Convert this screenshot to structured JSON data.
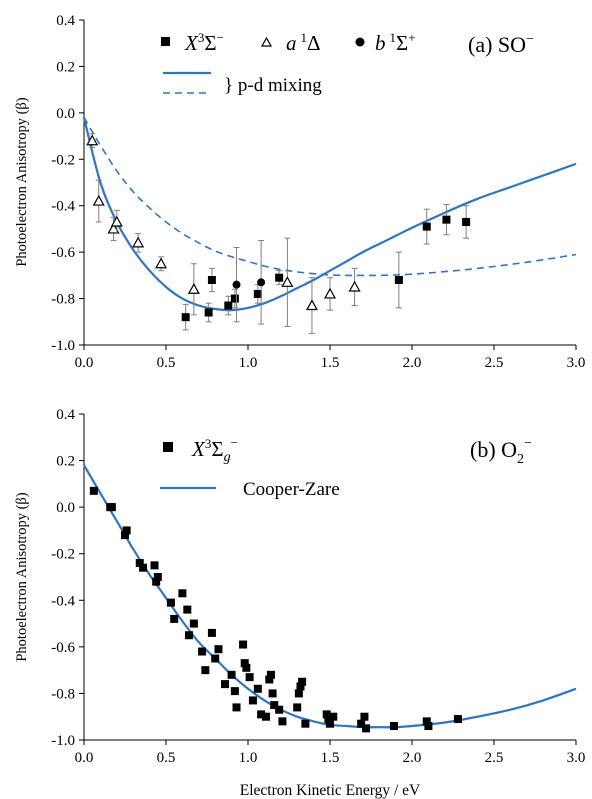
{
  "colors": {
    "curve": "#2e75c4",
    "marker": "#000000",
    "errorbar": "#7f7f7f",
    "axis": "#000000"
  },
  "chart_data": [
    {
      "type": "scatter",
      "panel_label": "(a) SO",
      "panel_label_sup": "−",
      "xlim": [
        0.0,
        3.0
      ],
      "ylim": [
        -1.0,
        0.4
      ],
      "ylabel": "Photoelectron Anisotropy (β)",
      "xlabel": "",
      "xticks": [
        "0.0",
        "0.5",
        "1.0",
        "1.5",
        "2.0",
        "2.5",
        "3.0"
      ],
      "yticks": [
        "0.4",
        "0.2",
        "0.0",
        "-0.2",
        "-0.4",
        "-0.6",
        "-0.8",
        "-1.0"
      ],
      "legend": {
        "x_state": {
          "main": "X",
          "sup": "3",
          "rest": "Σ",
          "sup2": "−"
        },
        "a_state": {
          "main": "a",
          "sup": "1",
          "rest": "Δ"
        },
        "b_state": {
          "main": "b",
          "sup": "1",
          "rest": "Σ",
          "sup2": "+"
        },
        "mixing_text": "} p-d mixing"
      },
      "series": [
        {
          "name": "X3Σ−",
          "marker": "square",
          "points": [
            {
              "x": 0.62,
              "y": -0.88,
              "err": 0.055
            },
            {
              "x": 0.76,
              "y": -0.86,
              "err": 0.04
            },
            {
              "x": 0.78,
              "y": -0.72,
              "err": 0.05
            },
            {
              "x": 0.88,
              "y": -0.83,
              "err": 0.04
            },
            {
              "x": 0.92,
              "y": -0.8,
              "err": 0.04
            },
            {
              "x": 1.06,
              "y": -0.78,
              "err": 0.04
            },
            {
              "x": 1.19,
              "y": -0.71,
              "err": 0.03
            },
            {
              "x": 1.92,
              "y": -0.72,
              "err": 0.12
            },
            {
              "x": 2.09,
              "y": -0.49,
              "err": 0.075
            },
            {
              "x": 2.21,
              "y": -0.46,
              "err": 0.065
            },
            {
              "x": 2.33,
              "y": -0.47,
              "err": 0.07
            }
          ]
        },
        {
          "name": "a1Δ",
          "marker": "triangle",
          "points": [
            {
              "x": 0.05,
              "y": -0.12,
              "err": 0.03
            },
            {
              "x": 0.09,
              "y": -0.38,
              "err": 0.09
            },
            {
              "x": 0.18,
              "y": -0.5,
              "err": 0.05
            },
            {
              "x": 0.2,
              "y": -0.47,
              "err": 0.05
            },
            {
              "x": 0.33,
              "y": -0.56,
              "err": 0.04
            },
            {
              "x": 0.47,
              "y": -0.65,
              "err": 0.03
            },
            {
              "x": 0.67,
              "y": -0.76,
              "err": 0.11
            },
            {
              "x": 1.24,
              "y": -0.73,
              "err": 0.19
            },
            {
              "x": 1.39,
              "y": -0.83,
              "err": 0.12
            },
            {
              "x": 1.5,
              "y": -0.78,
              "err": 0.07
            },
            {
              "x": 1.65,
              "y": -0.75,
              "err": 0.08
            }
          ]
        },
        {
          "name": "b1Σ+",
          "marker": "circle",
          "points": [
            {
              "x": 0.93,
              "y": -0.74,
              "err": 0.16
            },
            {
              "x": 1.08,
              "y": -0.73,
              "err": 0.18
            }
          ]
        }
      ],
      "curves": [
        {
          "style": "solid",
          "x": [
            0.0,
            0.1,
            0.2,
            0.3,
            0.4,
            0.5,
            0.6,
            0.7,
            0.8,
            0.9,
            1.0,
            1.1,
            1.2,
            1.3,
            1.4,
            1.5,
            1.6,
            1.7,
            1.8,
            1.9,
            2.0,
            2.2,
            2.4,
            2.6,
            2.8,
            3.0
          ],
          "y": [
            -0.02,
            -0.3,
            -0.47,
            -0.59,
            -0.68,
            -0.75,
            -0.8,
            -0.83,
            -0.845,
            -0.85,
            -0.84,
            -0.82,
            -0.79,
            -0.755,
            -0.72,
            -0.68,
            -0.64,
            -0.6,
            -0.565,
            -0.53,
            -0.495,
            -0.43,
            -0.37,
            -0.32,
            -0.27,
            -0.22
          ]
        },
        {
          "style": "dashed",
          "x": [
            0.0,
            0.1,
            0.2,
            0.3,
            0.4,
            0.5,
            0.6,
            0.7,
            0.8,
            0.9,
            1.0,
            1.1,
            1.2,
            1.3,
            1.4,
            1.5,
            1.6,
            1.7,
            1.8,
            1.9,
            2.0,
            2.2,
            2.4,
            2.6,
            2.8,
            3.0
          ],
          "y": [
            -0.02,
            -0.14,
            -0.25,
            -0.34,
            -0.41,
            -0.47,
            -0.52,
            -0.56,
            -0.595,
            -0.62,
            -0.64,
            -0.66,
            -0.675,
            -0.685,
            -0.693,
            -0.698,
            -0.7,
            -0.7,
            -0.7,
            -0.698,
            -0.695,
            -0.684,
            -0.67,
            -0.653,
            -0.633,
            -0.61
          ]
        }
      ]
    },
    {
      "type": "scatter",
      "panel_label": "(b) O",
      "panel_label_sub": "2",
      "panel_label_sup": "−",
      "xlim": [
        0.0,
        3.0
      ],
      "ylim": [
        -1.0,
        0.4
      ],
      "ylabel": "Photoelectron Anisotropy (β)",
      "xlabel": "Electron Kinetic Energy / eV",
      "xticks": [
        "0.0",
        "0.5",
        "1.0",
        "1.5",
        "2.0",
        "2.5",
        "3.0"
      ],
      "yticks": [
        "0.4",
        "0.2",
        "0.0",
        "-0.2",
        "-0.4",
        "-0.6",
        "-0.8",
        "-1.0"
      ],
      "legend": {
        "x_state": {
          "main": "X",
          "sup": "3",
          "rest": "Σ",
          "sub": "g",
          "sup2": "−"
        },
        "cz_text": "Cooper-Zare"
      },
      "series": [
        {
          "name": "X3Σg−",
          "marker": "square",
          "points": [
            {
              "x": 0.06,
              "y": 0.07
            },
            {
              "x": 0.16,
              "y": 0.0
            },
            {
              "x": 0.17,
              "y": 0.0
            },
            {
              "x": 0.25,
              "y": -0.12
            },
            {
              "x": 0.26,
              "y": -0.1
            },
            {
              "x": 0.34,
              "y": -0.24
            },
            {
              "x": 0.36,
              "y": -0.26
            },
            {
              "x": 0.43,
              "y": -0.25
            },
            {
              "x": 0.44,
              "y": -0.32
            },
            {
              "x": 0.45,
              "y": -0.3
            },
            {
              "x": 0.53,
              "y": -0.41
            },
            {
              "x": 0.55,
              "y": -0.48
            },
            {
              "x": 0.6,
              "y": -0.37
            },
            {
              "x": 0.63,
              "y": -0.44
            },
            {
              "x": 0.64,
              "y": -0.55
            },
            {
              "x": 0.67,
              "y": -0.5
            },
            {
              "x": 0.72,
              "y": -0.62
            },
            {
              "x": 0.74,
              "y": -0.7
            },
            {
              "x": 0.78,
              "y": -0.54
            },
            {
              "x": 0.8,
              "y": -0.65
            },
            {
              "x": 0.82,
              "y": -0.61
            },
            {
              "x": 0.86,
              "y": -0.76
            },
            {
              "x": 0.9,
              "y": -0.72
            },
            {
              "x": 0.92,
              "y": -0.79
            },
            {
              "x": 0.93,
              "y": -0.86
            },
            {
              "x": 0.97,
              "y": -0.59
            },
            {
              "x": 0.98,
              "y": -0.67
            },
            {
              "x": 0.99,
              "y": -0.69
            },
            {
              "x": 1.01,
              "y": -0.73
            },
            {
              "x": 1.03,
              "y": -0.83
            },
            {
              "x": 1.06,
              "y": -0.78
            },
            {
              "x": 1.08,
              "y": -0.89
            },
            {
              "x": 1.11,
              "y": -0.9
            },
            {
              "x": 1.13,
              "y": -0.74
            },
            {
              "x": 1.14,
              "y": -0.72
            },
            {
              "x": 1.15,
              "y": -0.8
            },
            {
              "x": 1.16,
              "y": -0.85
            },
            {
              "x": 1.19,
              "y": -0.87
            },
            {
              "x": 1.21,
              "y": -0.92
            },
            {
              "x": 1.3,
              "y": -0.86
            },
            {
              "x": 1.31,
              "y": -0.8
            },
            {
              "x": 1.32,
              "y": -0.77
            },
            {
              "x": 1.33,
              "y": -0.75
            },
            {
              "x": 1.35,
              "y": -0.93
            },
            {
              "x": 1.48,
              "y": -0.89
            },
            {
              "x": 1.49,
              "y": -0.91
            },
            {
              "x": 1.5,
              "y": -0.93
            },
            {
              "x": 1.52,
              "y": -0.9
            },
            {
              "x": 1.69,
              "y": -0.93
            },
            {
              "x": 1.71,
              "y": -0.9
            },
            {
              "x": 1.72,
              "y": -0.95
            },
            {
              "x": 1.89,
              "y": -0.94
            },
            {
              "x": 2.09,
              "y": -0.92
            },
            {
              "x": 2.1,
              "y": -0.94
            },
            {
              "x": 2.28,
              "y": -0.91
            }
          ]
        }
      ],
      "curves": [
        {
          "style": "solid",
          "x": [
            0.0,
            0.1,
            0.2,
            0.3,
            0.4,
            0.5,
            0.6,
            0.7,
            0.8,
            0.9,
            1.0,
            1.1,
            1.2,
            1.3,
            1.4,
            1.5,
            1.6,
            1.7,
            1.8,
            1.9,
            2.0,
            2.2,
            2.4,
            2.6,
            2.8,
            3.0
          ],
          "y": [
            0.18,
            0.06,
            -0.06,
            -0.18,
            -0.29,
            -0.39,
            -0.49,
            -0.58,
            -0.65,
            -0.72,
            -0.78,
            -0.83,
            -0.87,
            -0.9,
            -0.92,
            -0.935,
            -0.94,
            -0.945,
            -0.945,
            -0.945,
            -0.94,
            -0.925,
            -0.9,
            -0.87,
            -0.83,
            -0.78
          ]
        }
      ]
    }
  ]
}
